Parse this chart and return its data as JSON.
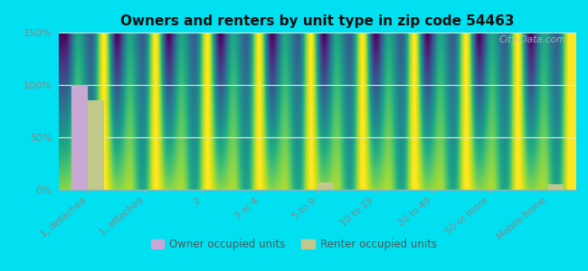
{
  "title": "Owners and renters by unit type in zip code 54463",
  "categories": [
    "1, detached",
    "1, attached",
    "2",
    "3 or 4",
    "5 to 9",
    "10 to 19",
    "20 to 49",
    "50 or more",
    "Mobile home"
  ],
  "owner_values": [
    100,
    0,
    0,
    0,
    0,
    0,
    0,
    0,
    0
  ],
  "renter_values": [
    85,
    0,
    0,
    0,
    7,
    0,
    0,
    0,
    5
  ],
  "owner_color": "#c9a8d4",
  "renter_color": "#c0c88a",
  "background_outer": "#00e0f0",
  "background_inner_top": "#c8e8d8",
  "background_inner_bottom": "#f5f8e8",
  "ylim": [
    0,
    150
  ],
  "yticks": [
    0,
    50,
    100,
    150
  ],
  "ytick_labels": [
    "0%",
    "50%",
    "100%",
    "150%"
  ],
  "watermark": "City-Data.com",
  "legend_owner": "Owner occupied units",
  "legend_renter": "Renter occupied units",
  "grid_color": "#e0e8d0",
  "tick_label_color": "#888888",
  "title_color": "#111111"
}
